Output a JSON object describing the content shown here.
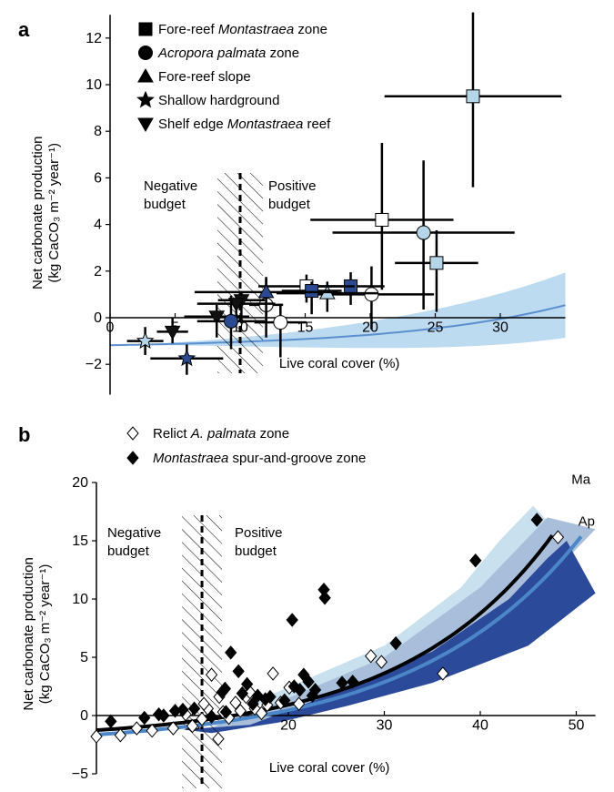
{
  "chart_data": [
    {
      "panel": "a",
      "type": "scatter",
      "xlabel": "Live coral cover (%)",
      "ylabel_line1": "Net carbonate production",
      "ylabel_line2": "(kg CaCO₃ m⁻² year⁻¹)",
      "xlim": [
        0,
        35
      ],
      "ylim": [
        -4,
        13
      ],
      "xticks": [
        "0",
        "5",
        "10",
        "15",
        "20",
        "25",
        "30"
      ],
      "xtick_values": [
        0,
        5,
        10,
        15,
        20,
        25,
        30
      ],
      "yticks": [
        "−2",
        "0",
        "2",
        "4",
        "6",
        "8",
        "10",
        "12"
      ],
      "ytick_values": [
        -2,
        0,
        2,
        4,
        6,
        8,
        10,
        12
      ],
      "threshold_x": 10,
      "negative_label": [
        "Negative",
        "budget"
      ],
      "positive_label": [
        "Positive",
        "budget"
      ],
      "legend": [
        {
          "shape": "square",
          "text_pre": "Fore-reef ",
          "text_italic": "Montastraea",
          "text_post": " zone"
        },
        {
          "shape": "circle",
          "text_pre": "",
          "text_italic": "Acropora palmata",
          "text_post": " zone"
        },
        {
          "shape": "triangle",
          "text_pre": "Fore-reef slope",
          "text_italic": "",
          "text_post": ""
        },
        {
          "shape": "star",
          "text_pre": "Shallow hardground",
          "text_italic": "",
          "text_post": ""
        },
        {
          "shape": "triangle-down",
          "text_pre": "Shelf edge ",
          "text_italic": "Montastraea",
          "text_post": " reef"
        }
      ],
      "colors": {
        "dark": "#2c4a8f",
        "light": "#b5d6e8",
        "white": "#ffffff",
        "black": "#111111",
        "band": "#bcdaf0",
        "fit": "#5b8fd0"
      },
      "fit": {
        "a": -1.3,
        "b": 0.12,
        "k": 0.078,
        "band_half_width_at_35": 1.4
      },
      "points": [
        {
          "shape": "square",
          "fill": "light",
          "x": 27.9,
          "y": 9.5,
          "xerr": 6.8,
          "yerr_lo": 3.9,
          "yerr_hi": 3.6
        },
        {
          "shape": "square",
          "fill": "white",
          "x": 20.9,
          "y": 4.2,
          "xerr": 5.5,
          "yerr_lo": 3.0,
          "yerr_hi": 3.3
        },
        {
          "shape": "circle",
          "fill": "light",
          "x": 24.1,
          "y": 3.65,
          "xerr": 7.0,
          "yerr_lo": 3.3,
          "yerr_hi": 3.1
        },
        {
          "shape": "square",
          "fill": "light",
          "x": 25.1,
          "y": 2.35,
          "xerr": 3.2,
          "yerr_lo": 2.1,
          "yerr_hi": 1.4
        },
        {
          "shape": "circle",
          "fill": "white",
          "x": 20.1,
          "y": 1.0,
          "xerr": 4.8,
          "yerr_lo": 1.5,
          "yerr_hi": 1.2
        },
        {
          "shape": "square",
          "fill": "dark",
          "x": 18.5,
          "y": 1.35,
          "xerr": 2.6,
          "yerr_lo": 0.8,
          "yerr_hi": 0.6
        },
        {
          "shape": "triangle",
          "fill": "light",
          "x": 16.7,
          "y": 1.05,
          "xerr": 3.9,
          "yerr_lo": 0.8,
          "yerr_hi": 0.5
        },
        {
          "shape": "square",
          "fill": "white",
          "x": 15.1,
          "y": 1.35,
          "xerr": 3.7,
          "yerr_lo": 0.7,
          "yerr_hi": 0.5
        },
        {
          "shape": "square",
          "fill": "dark",
          "x": 15.5,
          "y": 1.15,
          "xerr": 2.3,
          "yerr_lo": 1.0,
          "yerr_hi": 0.4
        },
        {
          "shape": "circle",
          "fill": "white",
          "x": 13.1,
          "y": -0.2,
          "xerr": 2.0,
          "yerr_lo": 1.5,
          "yerr_hi": 0.8
        },
        {
          "shape": "circle",
          "fill": "white",
          "x": 12.0,
          "y": 0.55,
          "xerr": 1.3,
          "yerr_lo": 1.4,
          "yerr_hi": 1.2
        },
        {
          "shape": "triangle",
          "fill": "dark",
          "x": 12.0,
          "y": 1.1,
          "xerr": 5.5,
          "yerr_lo": 1.3,
          "yerr_hi": 0.6
        },
        {
          "shape": "triangle-down",
          "fill": "black",
          "x": 10.1,
          "y": 0.75,
          "xerr": 1.8,
          "yerr_lo": 1.0,
          "yerr_hi": 0.3
        },
        {
          "shape": "triangle-down",
          "fill": "black",
          "x": 9.7,
          "y": 0.6,
          "xerr": 3.0,
          "yerr_lo": 0.6,
          "yerr_hi": 0.2
        },
        {
          "shape": "triangle-down",
          "fill": "black",
          "x": 8.2,
          "y": 0.05,
          "xerr": 2.5,
          "yerr_lo": 0.9,
          "yerr_hi": 0.5
        },
        {
          "shape": "circle",
          "fill": "dark",
          "x": 9.3,
          "y": -0.15,
          "xerr": 2.6,
          "yerr_lo": 1.2,
          "yerr_hi": 1.1
        },
        {
          "shape": "triangle-down",
          "fill": "black",
          "x": 4.8,
          "y": -0.6,
          "xerr": 1.2,
          "yerr_lo": 0.5,
          "yerr_hi": 0.6
        },
        {
          "shape": "star",
          "fill": "light",
          "x": 2.7,
          "y": -1.0,
          "xerr": 1.4,
          "yerr_lo": 0.6,
          "yerr_hi": 0.6
        },
        {
          "shape": "star",
          "fill": "dark",
          "x": 5.9,
          "y": -1.75,
          "xerr": 2.8,
          "yerr_lo": 0.7,
          "yerr_hi": 0.6
        }
      ]
    },
    {
      "panel": "b",
      "type": "scatter",
      "xlabel": "Live coral cover (%)",
      "ylabel_line1": "Net carbonate production",
      "ylabel_line2": "(kg CaCO₃ m⁻² year⁻¹)",
      "xlim": [
        0,
        52
      ],
      "ylim": [
        -5,
        20
      ],
      "xticks": [
        "10",
        "20",
        "30",
        "40",
        "50"
      ],
      "xtick_values": [
        10,
        20,
        30,
        40,
        50
      ],
      "yticks": [
        "−5",
        "0",
        "5",
        "10",
        "15",
        "20"
      ],
      "ytick_values": [
        -5,
        0,
        5,
        10,
        15,
        20
      ],
      "threshold_x": 11,
      "negative_label": [
        "Negative",
        "budget"
      ],
      "positive_label": [
        "Positive",
        "budget"
      ],
      "legend": [
        {
          "shape": "diamond-open",
          "text_pre": "Relict ",
          "text_italic": "A. palmata",
          "text_post": " zone"
        },
        {
          "shape": "diamond-filled",
          "text_pre": "",
          "text_italic": "Montastraea",
          "text_post": " spur-and-groove zone"
        }
      ],
      "series_labels": [
        "Ma",
        "Ap"
      ],
      "colors": {
        "ma_band": "#c9e0ef",
        "mid_band": "#a9bedb",
        "ap_band": "#2c4a9a",
        "ma_line": "#000000",
        "ap_line": "#4a86c8"
      },
      "fits": {
        "Ma": {
          "a": -2.1,
          "b": 0.84,
          "k": 0.064,
          "x_end": 47.5
        },
        "Ap": {
          "a": -2.6,
          "b": 0.96,
          "k": 0.058,
          "x_end": 50.5
        }
      },
      "montastraea": [
        [
          1.5,
          -0.5
        ],
        [
          5.0,
          -0.2
        ],
        [
          6.5,
          0.1
        ],
        [
          7.0,
          0.0
        ],
        [
          8.2,
          0.4
        ],
        [
          9.0,
          0.5
        ],
        [
          10.2,
          0.6
        ],
        [
          12.0,
          -0.1
        ],
        [
          13.1,
          2.0
        ],
        [
          13.4,
          2.3
        ],
        [
          13.5,
          0.3
        ],
        [
          14.0,
          5.4
        ],
        [
          14.8,
          3.8
        ],
        [
          15.2,
          1.9
        ],
        [
          15.7,
          2.7
        ],
        [
          16.3,
          1.0
        ],
        [
          16.8,
          1.7
        ],
        [
          17.6,
          1.4
        ],
        [
          18.1,
          1.6
        ],
        [
          19.6,
          1.3
        ],
        [
          20.4,
          8.2
        ],
        [
          20.6,
          2.5
        ],
        [
          21.2,
          2.2
        ],
        [
          21.6,
          3.5
        ],
        [
          22.1,
          2.9
        ],
        [
          22.5,
          1.7
        ],
        [
          22.8,
          2.2
        ],
        [
          23.7,
          10.8
        ],
        [
          23.8,
          10.1
        ],
        [
          25.6,
          2.8
        ],
        [
          26.7,
          2.9
        ],
        [
          31.2,
          6.2
        ],
        [
          39.5,
          13.3
        ],
        [
          45.9,
          16.8
        ]
      ],
      "palmata": [
        [
          0.0,
          -1.8
        ],
        [
          2.5,
          -1.7
        ],
        [
          4.2,
          -1.1
        ],
        [
          5.8,
          -1.3
        ],
        [
          8.0,
          -1.1
        ],
        [
          9.3,
          0.1
        ],
        [
          10.0,
          -0.9
        ],
        [
          11.0,
          -0.3
        ],
        [
          11.6,
          0.6
        ],
        [
          12.0,
          3.5
        ],
        [
          12.8,
          1.6
        ],
        [
          13.2,
          0.3
        ],
        [
          13.8,
          -0.2
        ],
        [
          14.5,
          1.1
        ],
        [
          15.0,
          0.4
        ],
        [
          15.6,
          1.6
        ],
        [
          16.0,
          2.0
        ],
        [
          16.5,
          0.6
        ],
        [
          17.2,
          0.2
        ],
        [
          17.8,
          0.9
        ],
        [
          18.4,
          3.6
        ],
        [
          19.2,
          1.1
        ],
        [
          20.1,
          2.4
        ],
        [
          21.1,
          1.0
        ],
        [
          28.6,
          5.1
        ],
        [
          29.7,
          4.6
        ],
        [
          36.1,
          3.6
        ],
        [
          48.1,
          15.3
        ],
        [
          12.7,
          -2.0
        ],
        [
          11.2,
          1.0
        ]
      ]
    }
  ]
}
